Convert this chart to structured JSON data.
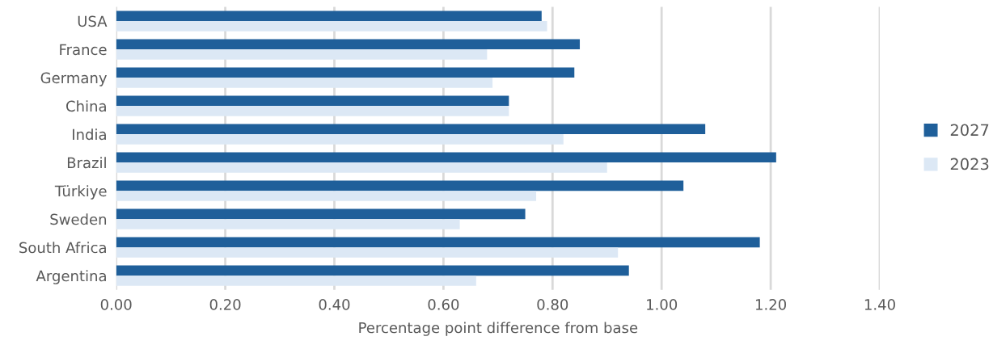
{
  "chart_data": {
    "type": "bar",
    "orientation": "horizontal",
    "xlabel": "Percentage point difference from base",
    "categories": [
      "USA",
      "France",
      "Germany",
      "China",
      "India",
      "Brazil",
      "Türkiye",
      "Sweden",
      "South Africa",
      "Argentina"
    ],
    "series": [
      {
        "name": "2027",
        "color": "#1f5f9a",
        "values": [
          0.78,
          0.85,
          0.84,
          0.72,
          1.08,
          1.21,
          1.04,
          0.75,
          1.18,
          0.94
        ]
      },
      {
        "name": "2023",
        "color": "#dce8f5",
        "values": [
          0.79,
          0.68,
          0.69,
          0.72,
          0.82,
          0.9,
          0.77,
          0.63,
          0.92,
          0.66
        ]
      }
    ],
    "xlim": [
      0,
      1.4
    ],
    "xticks": [
      {
        "value": 0,
        "label": "0.00"
      },
      {
        "value": 0.2,
        "label": "0.20"
      },
      {
        "value": 0.4,
        "label": "0.40"
      },
      {
        "value": 0.6,
        "label": "0.60"
      },
      {
        "value": 0.8,
        "label": "0.80"
      },
      {
        "value": 1.0,
        "label": "1.00"
      },
      {
        "value": 1.2,
        "label": "1.20"
      },
      {
        "value": 1.4,
        "label": "1.40"
      }
    ],
    "grid": "x",
    "legend": "right"
  }
}
